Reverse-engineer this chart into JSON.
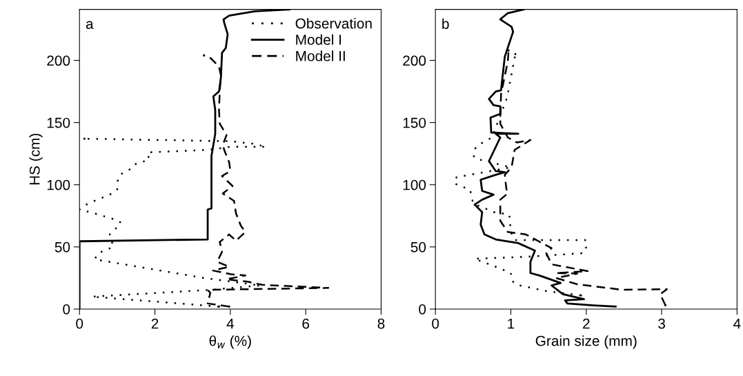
{
  "chart_data": [
    {
      "type": "line",
      "xlabel": "θ$_{w}$ (%)",
      "ylabel": "HS (cm)",
      "annotations": [
        "a"
      ],
      "xlim": [
        0,
        8
      ],
      "xticks": [
        0,
        2,
        4,
        6,
        8
      ],
      "ylim": [
        0,
        241
      ],
      "yticks": [
        0,
        50,
        100,
        150,
        200
      ],
      "grid": false,
      "legend": "top right",
      "series": [
        {
          "name": "Observation",
          "color": "#000000",
          "line_style": "dotted",
          "x": [
            3.7,
            0.33,
            3.5,
            4.8,
            3.3,
            0.4,
            0.5,
            0.9,
            0.8,
            1.1,
            1.05,
            0.83,
            0.4,
            0.0,
            0.18,
            0.4,
            0.8,
            1.0,
            1.0,
            1.07,
            1.44,
            1.5,
            1.85,
            1.8,
            3.4,
            4.0,
            4.95,
            4.6,
            4.0,
            0.13
          ],
          "values": [
            2,
            10,
            15.5,
            19,
            25,
            40,
            45,
            50,
            60,
            69,
            71,
            73,
            77,
            80,
            84,
            87,
            92,
            96,
            102,
            108,
            114,
            117,
            120,
            126,
            128,
            130.5,
            130.5,
            133,
            135,
            137
          ]
        },
        {
          "name": "Model I",
          "color": "#000000",
          "line_style": "solid",
          "x": [
            0.0,
            0.0,
            3.4,
            3.4,
            3.5,
            3.5,
            3.5,
            3.6,
            3.6,
            3.55,
            3.7,
            3.75,
            3.78,
            3.88,
            3.93,
            3.84,
            3.82,
            3.97,
            4.65,
            5.57
          ],
          "values": [
            0,
            54.5,
            56,
            80,
            81,
            115,
            123,
            141,
            160,
            171,
            175,
            186,
            206,
            210,
            221,
            230,
            233,
            236,
            239.5,
            241
          ]
        },
        {
          "name": "Model II",
          "color": "#000000",
          "line_style": "dashed",
          "x": [
            3.97,
            3.4,
            3.47,
            3.4,
            6.6,
            4.84,
            4.46,
            3.9,
            4.4,
            4.02,
            3.54,
            3.97,
            3.65,
            3.78,
            3.72,
            3.97,
            4.15,
            4.4,
            4.28,
            4.15,
            4.1,
            3.8,
            4.06,
            3.78,
            4.0,
            3.97,
            3.85,
            3.8,
            3.9,
            3.72,
            3.7,
            3.72,
            3.75,
            3.7,
            3.47,
            3.3
          ],
          "values": [
            2,
            4.5,
            13,
            15.5,
            17,
            19.5,
            22,
            24,
            27,
            28,
            31,
            34,
            38,
            46,
            54,
            60,
            55,
            62,
            67,
            77,
            87,
            93,
            99,
            107,
            111,
            118,
            127,
            132,
            140,
            149,
            160,
            175,
            188,
            195,
            202,
            204
          ]
        }
      ]
    },
    {
      "type": "line",
      "annotations": [
        "b"
      ],
      "xlabel": "Grain size (mm)",
      "xlim": [
        0,
        4
      ],
      "xticks": [
        0,
        1,
        2,
        3,
        4
      ],
      "ylim": [
        0,
        241
      ],
      "yticks": [
        0,
        50,
        100,
        150,
        200
      ],
      "grid": false,
      "series": [
        {
          "color": "#000000",
          "line_style": "dotted",
          "x": [
            1.93,
            1.47,
            1.08,
            1.01,
            1.0,
            0.8,
            0.52,
            1.2,
            1.97,
            2.0,
            2.0,
            1.05,
            1.0,
            0.98,
            0.77,
            0.5,
            0.46,
            0.25,
            0.28,
            1.0,
            0.6,
            0.51,
            0.51,
            0.57,
            0.75,
            0.95,
            1.06
          ],
          "values": [
            11,
            14.5,
            19.5,
            23,
            29,
            34,
            40.5,
            42,
            45,
            50,
            55.5,
            55.5,
            62,
            76,
            78,
            85,
            96,
            101,
            106,
            114,
            120,
            122,
            128,
            132,
            138,
            170,
            205
          ]
        },
        {
          "color": "#000000",
          "line_style": "solid",
          "x": [
            2.39,
            2.09,
            1.75,
            1.72,
            1.97,
            1.69,
            1.54,
            1.66,
            1.38,
            1.26,
            1.26,
            1.32,
            1.1,
            0.8,
            0.65,
            0.6,
            0.62,
            0.52,
            0.62,
            0.77,
            0.62,
            0.6,
            0.8,
            0.92,
            0.8,
            0.71,
            0.86,
            0.8,
            1.1,
            0.74,
            0.73,
            0.86,
            0.86,
            0.77,
            0.71,
            0.8,
            0.87,
            0.92,
            1.03,
            1.01,
            0.86,
            0.96,
            1.17
          ],
          "values": [
            2,
            3,
            4.5,
            7,
            8,
            12,
            19,
            21,
            27,
            29,
            38,
            47,
            53,
            56,
            60,
            68,
            78,
            84,
            88,
            92,
            95,
            104,
            108,
            110,
            111,
            119,
            138,
            141,
            141,
            142,
            154,
            157,
            163,
            164,
            169,
            175,
            176,
            203,
            223,
            227,
            233,
            238,
            241
          ]
        },
        {
          "color": "#000000",
          "line_style": "dashed",
          "x": [
            3.05,
            2.98,
            3.07,
            2.48,
            1.88,
            1.6,
            1.88,
            1.6,
            2.02,
            1.54,
            1.47,
            1.54,
            1.2,
            0.96,
            0.86,
            0.86,
            0.96,
            0.94,
            0.92,
            1.01,
            1.05,
            1.26,
            1.08,
            0.96,
            0.86,
            0.87,
            0.96,
            0.97
          ],
          "values": [
            3,
            12,
            16,
            15.5,
            20,
            25,
            28.5,
            29,
            30.5,
            36,
            45,
            49,
            60,
            62,
            71,
            88,
            93,
            97,
            108,
            114,
            128,
            136,
            134,
            138,
            149,
            173,
            199,
            208
          ]
        }
      ]
    }
  ]
}
